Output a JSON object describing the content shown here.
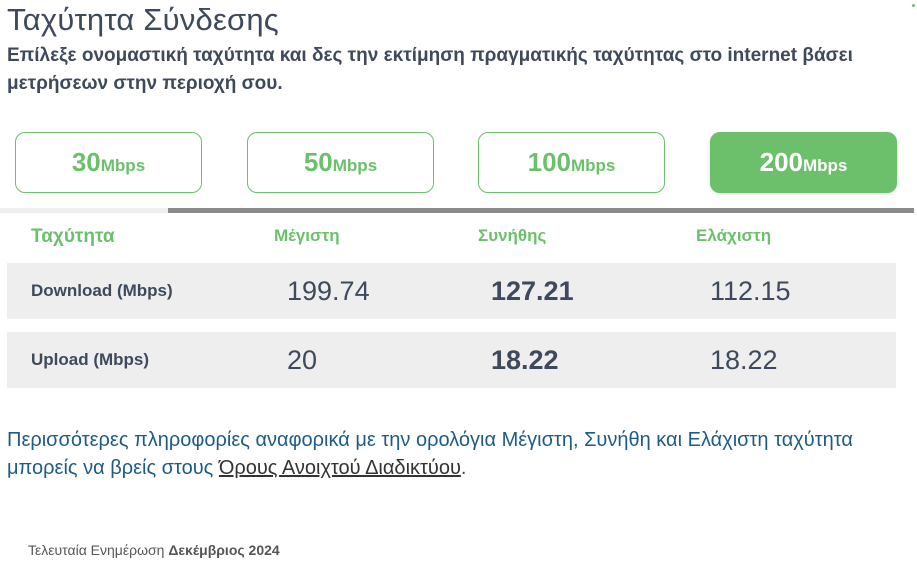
{
  "header": {
    "title": "Ταχύτητα Σύνδεσης",
    "subtitle": "Επίλεξε ονομαστική ταχύτητα και δες την εκτίμηση πραγματικής ταχύτητας στο internet βάσει μετρήσεων στην περιοχή σου."
  },
  "speed_options": [
    {
      "value": "30",
      "unit": "Mbps"
    },
    {
      "value": "50",
      "unit": "Mbps"
    },
    {
      "value": "100",
      "unit": "Mbps"
    },
    {
      "value": "200",
      "unit": "Mbps",
      "selected": true
    }
  ],
  "table": {
    "headers": {
      "speed": "Ταχύτητα",
      "max": "Μέγιστη",
      "usual": "Συνήθης",
      "min": "Ελάχιστη"
    },
    "rows": [
      {
        "label": "Download (Mbps)",
        "max": "199.74",
        "usual": "127.21",
        "min": "112.15"
      },
      {
        "label": "Upload (Mbps)",
        "max": "20",
        "usual": "18.22",
        "min": "18.22"
      }
    ]
  },
  "info": {
    "text": "Περισσότερες πληροφορίες αναφορικά με την ορολόγια Μέγιστη, Συνήθη και Ελάχιστη ταχύτητα μπορείς να βρείς στους ",
    "link": "Όρους Ανοιχτού Διαδικτύου",
    "suffix": "."
  },
  "footer": {
    "label": "Τελευταία Ενημέρωση",
    "date": "Δεκέμβριος 2024"
  },
  "colors": {
    "accent": "#6cc06c",
    "text": "#3e4a5b",
    "info": "#1e5b86",
    "row_bg": "#eeeeee"
  }
}
